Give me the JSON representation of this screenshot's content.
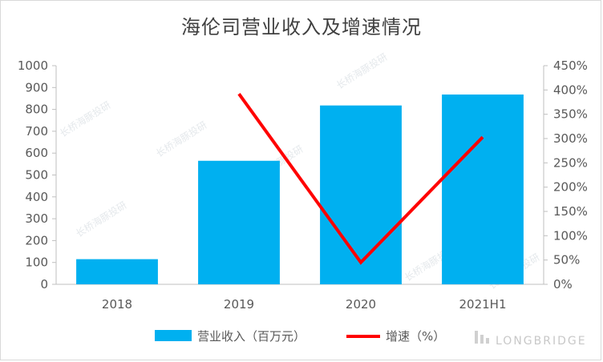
{
  "chart_data": {
    "type": "bar",
    "title": "海伦司营业收入及增速情况",
    "categories": [
      "2018",
      "2019",
      "2020",
      "2021H1"
    ],
    "series": [
      {
        "name": "营业收入（百万元）",
        "type": "bar",
        "axis": "left",
        "values": [
          115,
          565,
          818,
          868
        ],
        "color": "#00b0f0"
      },
      {
        "name": "增速（%）",
        "type": "line",
        "axis": "right",
        "values": [
          null,
          392,
          45,
          303
        ],
        "color": "#ff0000"
      }
    ],
    "y_left": {
      "ylim": [
        0,
        1000
      ],
      "ticks": [
        "0",
        "100",
        "200",
        "300",
        "400",
        "500",
        "600",
        "700",
        "800",
        "900",
        "1000"
      ]
    },
    "y_right": {
      "ylim": [
        0,
        450
      ],
      "ticks": [
        "0%",
        "50%",
        "100%",
        "150%",
        "200%",
        "250%",
        "300%",
        "350%",
        "400%",
        "450%"
      ]
    },
    "legend_position": "bottom",
    "grid": false
  },
  "watermark": {
    "text": "长桥海豚投研",
    "brand": "LONGBRIDGE"
  }
}
